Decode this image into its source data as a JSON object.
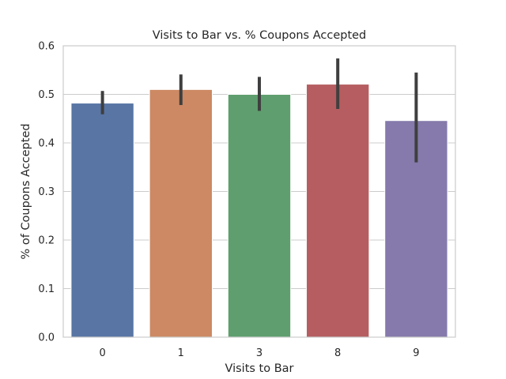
{
  "chart_data": {
    "type": "bar",
    "title": "Visits to Bar vs. % Coupons Accepted",
    "xlabel": "Visits to Bar",
    "ylabel": "% of Coupons Accepted",
    "categories": [
      "0",
      "1",
      "3",
      "8",
      "9"
    ],
    "values": [
      0.482,
      0.51,
      0.5,
      0.521,
      0.446
    ],
    "error_low": [
      0.459,
      0.478,
      0.466,
      0.47,
      0.36
    ],
    "error_high": [
      0.507,
      0.541,
      0.536,
      0.574,
      0.545
    ],
    "colors": [
      "#5875a4",
      "#cc8963",
      "#5f9e6e",
      "#b55d60",
      "#857aab"
    ],
    "ylim": [
      0,
      0.6
    ],
    "yticks": [
      "0.0",
      "0.1",
      "0.2",
      "0.3",
      "0.4",
      "0.5",
      "0.6"
    ],
    "ytick_values": [
      0,
      0.1,
      0.2,
      0.3,
      0.4,
      0.5,
      0.6
    ],
    "grid": "horizontal",
    "legend": "none"
  }
}
